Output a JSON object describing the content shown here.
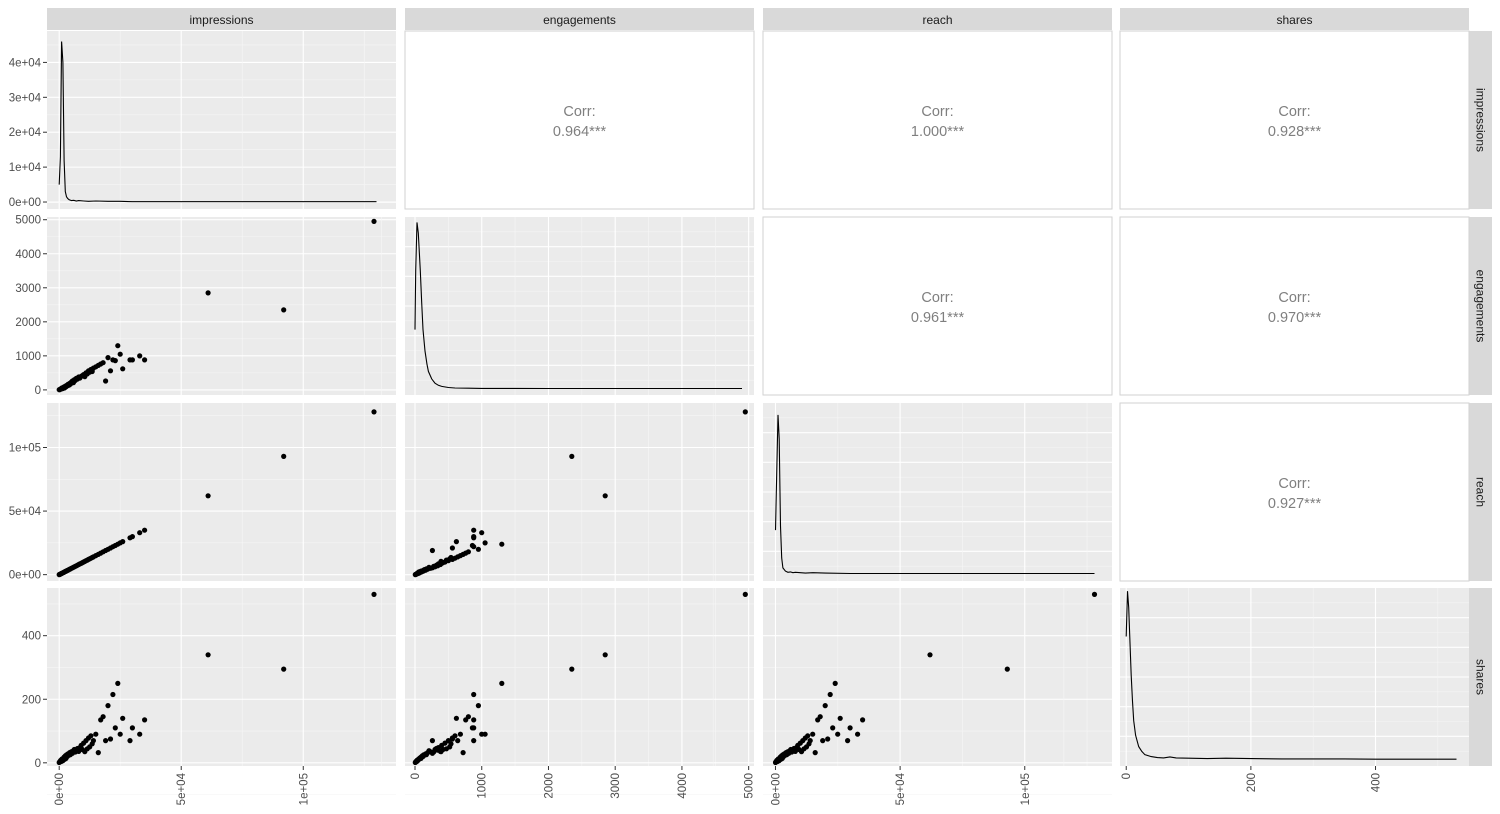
{
  "chart_data": {
    "type": "scatter",
    "layout": "pairs-matrix",
    "variables": [
      "impressions",
      "engagements",
      "reach",
      "shares"
    ],
    "upper": {
      "label": "Corr:",
      "correlations": [
        {
          "row": "impressions",
          "col": "engagements",
          "value": "0.964***"
        },
        {
          "row": "impressions",
          "col": "reach",
          "value": "1.000***"
        },
        {
          "row": "impressions",
          "col": "shares",
          "value": "0.928***"
        },
        {
          "row": "engagements",
          "col": "reach",
          "value": "0.961***"
        },
        {
          "row": "engagements",
          "col": "shares",
          "value": "0.970***"
        },
        {
          "row": "reach",
          "col": "shares",
          "value": "0.927***"
        }
      ]
    },
    "axes": {
      "impressions": {
        "lim": [
          -5000,
          138000
        ],
        "ticks": [
          0,
          50000,
          100000
        ],
        "tick_labels": [
          "0e+00",
          "5e+04",
          "1e+05"
        ]
      },
      "engagements": {
        "lim": [
          -150,
          5080
        ],
        "ticks": [
          0,
          1000,
          2000,
          3000,
          4000,
          5000
        ],
        "tick_labels": [
          "0",
          "1000",
          "2000",
          "3000",
          "4000",
          "5000"
        ]
      },
      "reach": {
        "lim": [
          -5000,
          135000
        ],
        "ticks": [
          0,
          50000,
          100000
        ],
        "tick_labels": [
          "0e+00",
          "5e+04",
          "1e+05"
        ]
      },
      "shares": {
        "lim": [
          -10,
          550
        ],
        "ticks": [
          0,
          200,
          400
        ],
        "tick_labels": [
          "0",
          "200",
          "400"
        ]
      }
    },
    "diagonal": [
      {
        "variable": "impressions",
        "ylim": [
          -2e-05,
          0.00049
        ],
        "yticks": [
          0,
          0.0001,
          0.0002,
          0.0003,
          0.0004
        ],
        "ytick_labels": [
          "0e+00",
          "1e+04",
          "2e+04",
          "3e+04",
          "4e+04"
        ],
        "x": [
          0,
          500,
          1000,
          1500,
          2000,
          2500,
          3000,
          3500,
          4000,
          5000,
          6000,
          7000,
          8000,
          10000,
          12000,
          15000,
          20000,
          25000,
          30000,
          40000,
          50000,
          60000,
          70000,
          80000,
          90000,
          100000,
          110000,
          120000,
          130000
        ],
        "y": [
          5e-05,
          0.00013,
          0.00046,
          0.0004,
          0.00012,
          3e-05,
          1.5e-05,
          1e-05,
          7e-06,
          4e-06,
          5e-06,
          3e-06,
          4e-06,
          3e-06,
          2e-06,
          3e-06,
          2e-06,
          2e-06,
          1e-06,
          1e-06,
          1e-06,
          1e-06,
          1e-06,
          1e-06,
          1e-06,
          1e-06,
          1e-06,
          1e-06,
          1e-06
        ]
      },
      {
        "variable": "engagements",
        "ylim": [
          -0.00012,
          0.0032
        ],
        "yticks": [],
        "x": [
          0,
          10,
          30,
          50,
          80,
          100,
          120,
          150,
          180,
          200,
          250,
          300,
          350,
          400,
          500,
          600,
          800,
          1000,
          1500,
          2000,
          2500,
          3000,
          3500,
          4000,
          4500,
          4900
        ],
        "y": [
          0.0011,
          0.0022,
          0.0031,
          0.0029,
          0.0022,
          0.0016,
          0.0011,
          0.0007,
          0.00045,
          0.00032,
          0.00018,
          0.0001,
          6e-05,
          4e-05,
          2e-05,
          1e-05,
          6e-06,
          4e-06,
          3e-06,
          2e-06,
          1e-06,
          1e-06,
          1e-06,
          1e-06,
          1e-06,
          1e-06
        ]
      },
      {
        "variable": "reach",
        "ylim": [
          -1.8e-05,
          0.00043
        ],
        "yticks": [],
        "x": [
          0,
          500,
          1000,
          1500,
          2000,
          2500,
          3000,
          4000,
          5000,
          6000,
          7000,
          8000,
          10000,
          12000,
          15000,
          20000,
          30000,
          40000,
          50000,
          60000,
          70000,
          80000,
          90000,
          100000,
          110000,
          120000,
          128000
        ],
        "y": [
          0.00011,
          0.00025,
          0.0004,
          0.00034,
          0.00012,
          4e-05,
          1.5e-05,
          7e-06,
          4e-06,
          5e-06,
          3e-06,
          4e-06,
          3e-06,
          2e-06,
          3e-06,
          2e-06,
          1e-06,
          1e-06,
          1e-06,
          1e-06,
          1e-06,
          1e-06,
          1e-06,
          1e-06,
          1e-06,
          1e-06,
          1e-06
        ]
      },
      {
        "variable": "shares",
        "ylim": [
          -0.002,
          0.053
        ],
        "yticks": [],
        "x": [
          0,
          2,
          4,
          6,
          8,
          10,
          12,
          15,
          20,
          25,
          30,
          40,
          50,
          60,
          70,
          80,
          100,
          130,
          160,
          200,
          250,
          300,
          350,
          400,
          450,
          500,
          530
        ],
        "y": [
          0.038,
          0.052,
          0.047,
          0.036,
          0.026,
          0.018,
          0.012,
          0.0075,
          0.004,
          0.0025,
          0.0015,
          0.0009,
          0.0006,
          0.0005,
          0.0008,
          0.0005,
          0.0004,
          0.0003,
          0.0004,
          0.0003,
          0.0002,
          0.0002,
          0.0002,
          0.0001,
          0.0001,
          0.0001,
          0.0001
        ]
      }
    ],
    "points": {
      "impressions": [
        0,
        200,
        400,
        600,
        800,
        1000,
        1200,
        1500,
        1800,
        2000,
        2200,
        2500,
        2800,
        3000,
        3300,
        3600,
        4000,
        4300,
        4600,
        5000,
        5400,
        5800,
        6200,
        6600,
        7000,
        7500,
        8000,
        8500,
        9000,
        9500,
        10000,
        10500,
        11000,
        11500,
        12000,
        12500,
        13000,
        13500,
        14000,
        15000,
        16000,
        17000,
        18000,
        19000,
        20000,
        21000,
        22000,
        23000,
        24000,
        25000,
        26000,
        29000,
        30000,
        33000,
        35000,
        61000,
        92000,
        129000
      ],
      "engagements": [
        5,
        10,
        20,
        30,
        25,
        45,
        60,
        40,
        70,
        90,
        60,
        110,
        90,
        130,
        120,
        160,
        140,
        190,
        170,
        230,
        260,
        210,
        300,
        280,
        340,
        320,
        380,
        350,
        400,
        420,
        450,
        390,
        500,
        470,
        560,
        520,
        600,
        540,
        640,
        680,
        720,
        760,
        800,
        260,
        950,
        560,
        880,
        860,
        1300,
        1050,
        620,
        880,
        880,
        1000,
        880,
        2850,
        2350,
        4950
      ],
      "reach": [
        0,
        190,
        380,
        570,
        760,
        950,
        1150,
        1450,
        1750,
        1950,
        2150,
        2450,
        2750,
        2950,
        3250,
        3550,
        3950,
        4250,
        4550,
        4950,
        5350,
        5750,
        6150,
        6550,
        6950,
        7450,
        7950,
        8450,
        8950,
        9450,
        9950,
        10450,
        10950,
        11450,
        11950,
        12450,
        12950,
        13450,
        13950,
        14950,
        15950,
        16950,
        17950,
        18950,
        19950,
        20950,
        21950,
        22950,
        23950,
        24950,
        25950,
        28950,
        29950,
        32950,
        34950,
        62000,
        93000,
        128000
      ],
      "shares": [
        1,
        3,
        5,
        8,
        4,
        10,
        12,
        7,
        15,
        18,
        11,
        22,
        14,
        25,
        20,
        28,
        24,
        32,
        26,
        35,
        30,
        38,
        42,
        34,
        40,
        45,
        36,
        48,
        55,
        42,
        62,
        35,
        70,
        44,
        78,
        50,
        85,
        60,
        70,
        90,
        32,
        135,
        145,
        70,
        180,
        75,
        215,
        110,
        250,
        90,
        140,
        70,
        110,
        90,
        135,
        340,
        295,
        530
      ]
    }
  }
}
